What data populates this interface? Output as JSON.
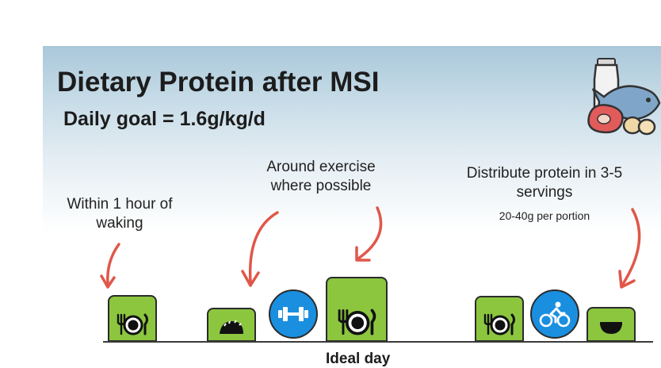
{
  "slide": {
    "title": "Dietary Protein after MSI",
    "subtitle": "Daily goal = 1.6g/kg/d"
  },
  "notes": {
    "waking": "Within 1 hour of waking",
    "exercise": "Around exercise where possible",
    "distribute": "Distribute protein in 3-5 servings",
    "portion": "20-40g per portion"
  },
  "timeline": {
    "label": "Ideal day",
    "items": [
      {
        "kind": "meal",
        "icon": "plate-cutlery-icon"
      },
      {
        "kind": "snack",
        "icon": "taco-icon"
      },
      {
        "kind": "exercise",
        "icon": "dumbbell-icon"
      },
      {
        "kind": "meal",
        "icon": "plate-cutlery-icon"
      },
      {
        "kind": "meal",
        "icon": "plate-cutlery-icon"
      },
      {
        "kind": "exercise",
        "icon": "cycling-icon"
      },
      {
        "kind": "snack",
        "icon": "bowl-icon"
      }
    ]
  },
  "colors": {
    "tile": "#8cc63f",
    "exercise": "#1a8fe0",
    "arrow": "#e0574a"
  }
}
